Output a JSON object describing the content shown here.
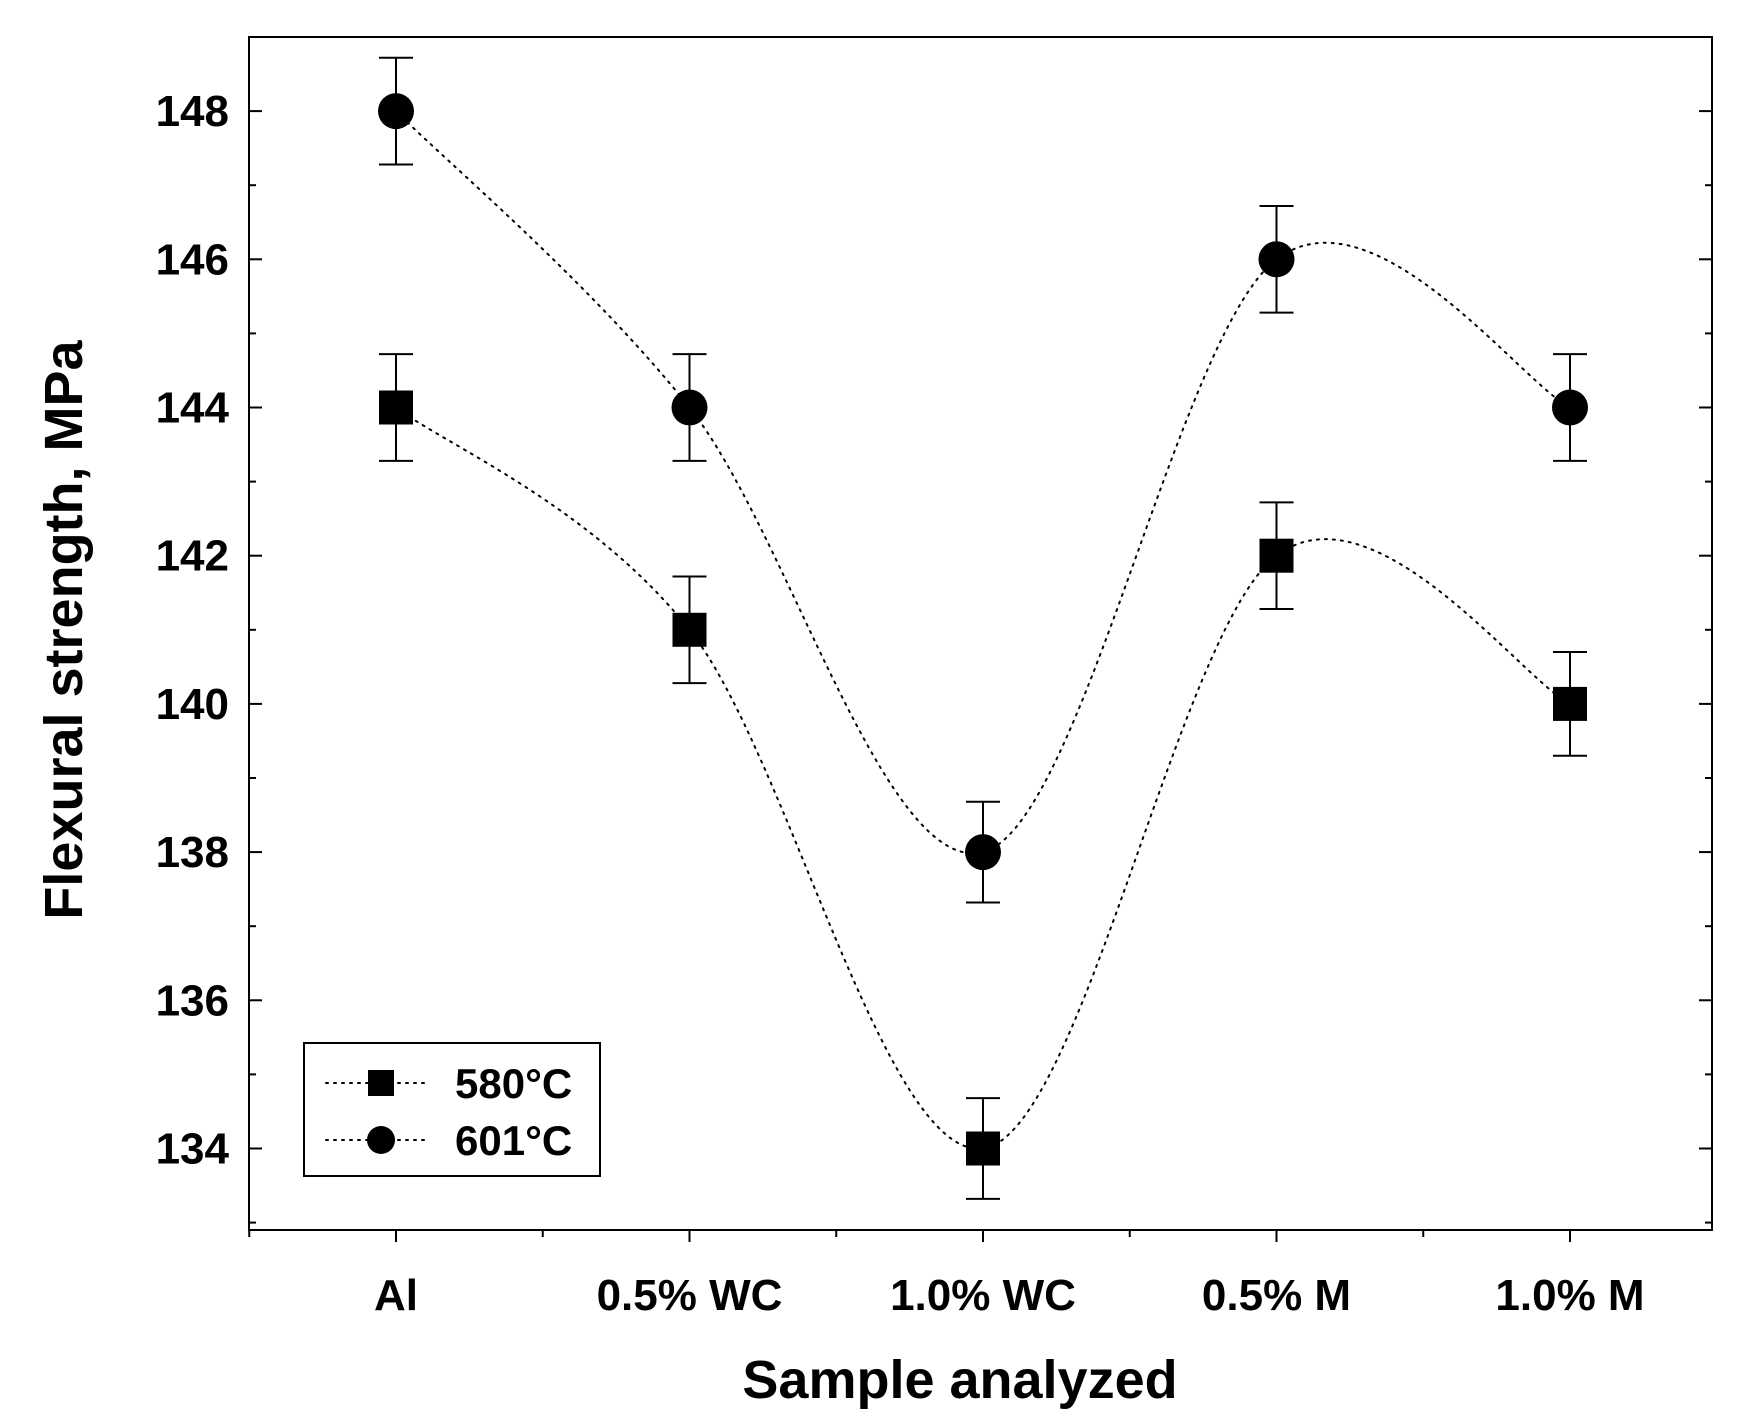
{
  "chart_data": {
    "type": "line",
    "title": "",
    "xlabel": "Sample analyzed",
    "ylabel": "Flexural strength, MPa",
    "categories": [
      "Al",
      "0.5% WC",
      "1.0% WC",
      "0.5% M",
      "1.0% M"
    ],
    "ylim": [
      132.9,
      149
    ],
    "yticks": [
      134,
      136,
      138,
      140,
      142,
      144,
      146,
      148
    ],
    "grid": false,
    "legend_position": "bottom-left",
    "series": [
      {
        "name": "580°C",
        "marker": "square",
        "line_style": "dotted",
        "values": [
          144,
          141,
          134,
          142,
          140
        ],
        "errors": [
          0.72,
          0.72,
          0.68,
          0.72,
          0.7
        ]
      },
      {
        "name": "601°C",
        "marker": "circle",
        "line_style": "dotted",
        "values": [
          148,
          144,
          138,
          146,
          144
        ],
        "errors": [
          0.72,
          0.72,
          0.68,
          0.72,
          0.72
        ]
      }
    ],
    "colors": {
      "series": "#000000",
      "background": "#ffffff",
      "axis": "#000000"
    }
  }
}
